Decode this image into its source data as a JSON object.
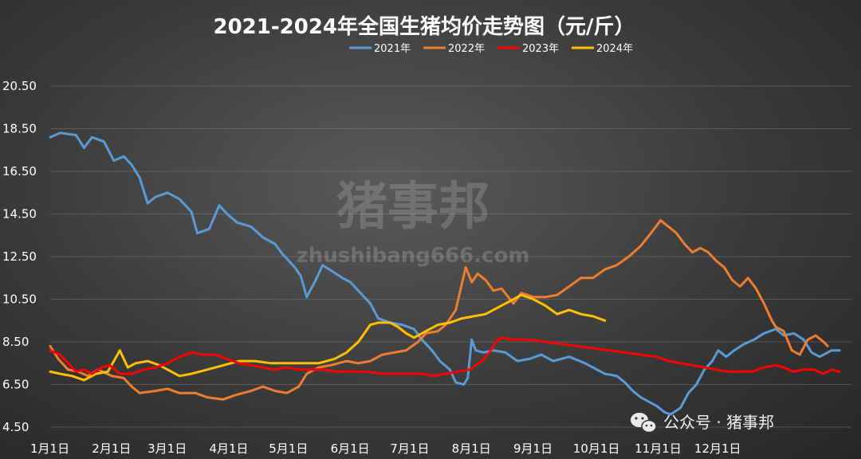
{
  "watermark": {
    "main": "猪事邦",
    "site": "zhushibang666.com"
  },
  "account_label": "公众号 · 猪事邦",
  "icons": {
    "account": "wechat-icon"
  },
  "chart_data": {
    "type": "line",
    "title": "2021-2024年全国生猪均价走势图（元/斤）",
    "xlabel": "",
    "ylabel": "",
    "legend_position": "top",
    "grid": true,
    "y_ticks": [
      "4.50",
      "6.50",
      "8.50",
      "10.50",
      "12.50",
      "14.50",
      "16.50",
      "18.50",
      "20.50"
    ],
    "ylim": [
      4.5,
      20.5
    ],
    "x_ticks": [
      {
        "label": "1月1日",
        "day": 1
      },
      {
        "label": "2月1日",
        "day": 32
      },
      {
        "label": "3月1日",
        "day": 60
      },
      {
        "label": "4月1日",
        "day": 91
      },
      {
        "label": "5月1日",
        "day": 121
      },
      {
        "label": "6月1日",
        "day": 152
      },
      {
        "label": "7月1日",
        "day": 182
      },
      {
        "label": "8月1日",
        "day": 213
      },
      {
        "label": "9月1日",
        "day": 244
      },
      {
        "label": "10月1日",
        "day": 274
      },
      {
        "label": "11月1日",
        "day": 305
      },
      {
        "label": "12月1日",
        "day": 335
      }
    ],
    "xlim": [
      1,
      366
    ],
    "series": [
      {
        "name": "2021年",
        "color": "#5b9bd5",
        "points": [
          [
            1,
            18.1
          ],
          [
            6,
            18.3
          ],
          [
            14,
            18.2
          ],
          [
            18,
            17.6
          ],
          [
            22,
            18.1
          ],
          [
            28,
            17.9
          ],
          [
            33,
            17.0
          ],
          [
            38,
            17.2
          ],
          [
            42,
            16.8
          ],
          [
            46,
            16.2
          ],
          [
            50,
            15.0
          ],
          [
            54,
            15.3
          ],
          [
            60,
            15.5
          ],
          [
            66,
            15.2
          ],
          [
            72,
            14.6
          ],
          [
            75,
            13.6
          ],
          [
            81,
            13.8
          ],
          [
            86,
            14.9
          ],
          [
            90,
            14.5
          ],
          [
            95,
            14.1
          ],
          [
            102,
            13.9
          ],
          [
            108,
            13.4
          ],
          [
            114,
            13.1
          ],
          [
            118,
            12.6
          ],
          [
            124,
            12.0
          ],
          [
            127,
            11.6
          ],
          [
            130,
            10.6
          ],
          [
            134,
            11.3
          ],
          [
            138,
            12.1
          ],
          [
            143,
            11.8
          ],
          [
            148,
            11.5
          ],
          [
            152,
            11.3
          ],
          [
            156,
            10.9
          ],
          [
            162,
            10.3
          ],
          [
            166,
            9.6
          ],
          [
            172,
            9.4
          ],
          [
            178,
            9.3
          ],
          [
            184,
            9.1
          ],
          [
            188,
            8.6
          ],
          [
            193,
            8.1
          ],
          [
            197,
            7.6
          ],
          [
            202,
            7.2
          ],
          [
            205,
            6.6
          ],
          [
            209,
            6.5
          ],
          [
            211,
            6.8
          ],
          [
            213,
            8.6
          ],
          [
            215,
            8.1
          ],
          [
            219,
            8.0
          ],
          [
            224,
            8.1
          ],
          [
            230,
            8.0
          ],
          [
            236,
            7.6
          ],
          [
            242,
            7.7
          ],
          [
            248,
            7.9
          ],
          [
            254,
            7.6
          ],
          [
            262,
            7.8
          ],
          [
            270,
            7.5
          ],
          [
            276,
            7.2
          ],
          [
            280,
            7.0
          ],
          [
            286,
            6.9
          ],
          [
            290,
            6.6
          ],
          [
            294,
            6.2
          ],
          [
            298,
            5.9
          ],
          [
            302,
            5.7
          ],
          [
            306,
            5.5
          ],
          [
            310,
            5.2
          ],
          [
            313,
            5.1
          ],
          [
            318,
            5.4
          ],
          [
            322,
            6.1
          ],
          [
            326,
            6.5
          ],
          [
            330,
            7.2
          ],
          [
            334,
            7.6
          ],
          [
            337,
            8.1
          ],
          [
            341,
            7.8
          ],
          [
            345,
            8.1
          ],
          [
            350,
            8.4
          ],
          [
            355,
            8.6
          ],
          [
            360,
            8.9
          ],
          [
            366,
            9.1
          ]
        ],
        "points_tail": [
          [
            370,
            8.8
          ],
          [
            375,
            8.9
          ],
          [
            380,
            8.6
          ],
          [
            384,
            8.0
          ],
          [
            388,
            7.8
          ],
          [
            390,
            7.9
          ],
          [
            394,
            8.1
          ],
          [
            398,
            8.1
          ]
        ]
      },
      {
        "name": "2022年",
        "color": "#ed7d31",
        "points": [
          [
            1,
            8.3
          ],
          [
            5,
            7.7
          ],
          [
            10,
            7.2
          ],
          [
            15,
            7.1
          ],
          [
            20,
            6.9
          ],
          [
            25,
            7.2
          ],
          [
            32,
            6.9
          ],
          [
            38,
            6.8
          ],
          [
            42,
            6.4
          ],
          [
            46,
            6.1
          ],
          [
            54,
            6.2
          ],
          [
            60,
            6.3
          ],
          [
            66,
            6.1
          ],
          [
            74,
            6.1
          ],
          [
            80,
            5.9
          ],
          [
            88,
            5.8
          ],
          [
            94,
            6.0
          ],
          [
            102,
            6.2
          ],
          [
            108,
            6.4
          ],
          [
            114,
            6.2
          ],
          [
            120,
            6.1
          ],
          [
            126,
            6.4
          ],
          [
            130,
            7.0
          ],
          [
            136,
            7.3
          ],
          [
            142,
            7.4
          ],
          [
            150,
            7.6
          ],
          [
            156,
            7.5
          ],
          [
            162,
            7.6
          ],
          [
            168,
            7.9
          ],
          [
            174,
            8.0
          ],
          [
            180,
            8.1
          ],
          [
            186,
            8.5
          ],
          [
            190,
            8.9
          ],
          [
            196,
            9.0
          ],
          [
            200,
            9.3
          ],
          [
            205,
            10.0
          ],
          [
            208,
            11.2
          ],
          [
            210,
            12.0
          ],
          [
            213,
            11.3
          ],
          [
            216,
            11.7
          ],
          [
            220,
            11.4
          ],
          [
            224,
            10.9
          ],
          [
            228,
            11.0
          ],
          [
            234,
            10.3
          ],
          [
            238,
            10.8
          ],
          [
            244,
            10.6
          ],
          [
            250,
            10.6
          ],
          [
            256,
            10.7
          ],
          [
            262,
            11.1
          ],
          [
            268,
            11.5
          ],
          [
            274,
            11.5
          ],
          [
            280,
            11.9
          ],
          [
            286,
            12.1
          ],
          [
            292,
            12.5
          ],
          [
            298,
            13.0
          ],
          [
            304,
            13.7
          ],
          [
            308,
            14.2
          ],
          [
            312,
            13.9
          ],
          [
            316,
            13.6
          ],
          [
            320,
            13.1
          ],
          [
            324,
            12.7
          ],
          [
            328,
            12.9
          ],
          [
            332,
            12.7
          ],
          [
            336,
            12.3
          ],
          [
            340,
            12.0
          ],
          [
            344,
            11.4
          ],
          [
            348,
            11.1
          ],
          [
            352,
            11.5
          ],
          [
            356,
            11.0
          ],
          [
            360,
            10.3
          ],
          [
            364,
            9.5
          ],
          [
            366,
            9.2
          ]
        ],
        "points_tail": [
          [
            370,
            9.0
          ],
          [
            374,
            8.1
          ],
          [
            378,
            7.9
          ],
          [
            382,
            8.6
          ],
          [
            386,
            8.8
          ],
          [
            390,
            8.5
          ],
          [
            392,
            8.3
          ]
        ]
      },
      {
        "name": "2023年",
        "color": "#ff0000",
        "points": [
          [
            1,
            8.1
          ],
          [
            6,
            7.9
          ],
          [
            10,
            7.5
          ],
          [
            14,
            7.1
          ],
          [
            18,
            7.2
          ],
          [
            22,
            7.0
          ],
          [
            27,
            7.3
          ],
          [
            31,
            7.4
          ],
          [
            36,
            7.0
          ],
          [
            42,
            7.0
          ],
          [
            48,
            7.2
          ],
          [
            54,
            7.3
          ],
          [
            60,
            7.5
          ],
          [
            66,
            7.8
          ],
          [
            72,
            8.0
          ],
          [
            78,
            7.9
          ],
          [
            84,
            7.9
          ],
          [
            90,
            7.7
          ],
          [
            96,
            7.5
          ],
          [
            102,
            7.4
          ],
          [
            108,
            7.3
          ],
          [
            114,
            7.2
          ],
          [
            120,
            7.3
          ],
          [
            126,
            7.2
          ],
          [
            132,
            7.2
          ],
          [
            138,
            7.2
          ],
          [
            146,
            7.1
          ],
          [
            152,
            7.1
          ],
          [
            160,
            7.1
          ],
          [
            168,
            7.0
          ],
          [
            176,
            7.0
          ],
          [
            182,
            7.0
          ],
          [
            188,
            7.0
          ],
          [
            194,
            6.9
          ],
          [
            200,
            7.0
          ],
          [
            206,
            7.1
          ],
          [
            212,
            7.2
          ],
          [
            218,
            7.6
          ],
          [
            222,
            8.0
          ],
          [
            225,
            8.5
          ],
          [
            228,
            8.7
          ],
          [
            234,
            8.6
          ],
          [
            242,
            8.6
          ],
          [
            250,
            8.5
          ],
          [
            258,
            8.4
          ],
          [
            266,
            8.3
          ],
          [
            274,
            8.2
          ],
          [
            282,
            8.1
          ],
          [
            290,
            8.0
          ],
          [
            298,
            7.9
          ],
          [
            306,
            7.8
          ],
          [
            312,
            7.6
          ],
          [
            318,
            7.5
          ],
          [
            324,
            7.4
          ],
          [
            330,
            7.3
          ],
          [
            336,
            7.2
          ],
          [
            342,
            7.1
          ],
          [
            348,
            7.1
          ],
          [
            354,
            7.1
          ],
          [
            360,
            7.3
          ],
          [
            366,
            7.4
          ]
        ],
        "points_tail": [
          [
            370,
            7.3
          ],
          [
            375,
            7.1
          ],
          [
            380,
            7.2
          ],
          [
            385,
            7.2
          ],
          [
            390,
            7.0
          ],
          [
            394,
            7.2
          ],
          [
            398,
            7.1
          ]
        ]
      },
      {
        "name": "2024年",
        "color": "#ffc000",
        "points": [
          [
            1,
            7.1
          ],
          [
            6,
            7.0
          ],
          [
            12,
            6.9
          ],
          [
            18,
            6.7
          ],
          [
            24,
            7.0
          ],
          [
            30,
            7.1
          ],
          [
            33,
            7.6
          ],
          [
            36,
            8.1
          ],
          [
            40,
            7.3
          ],
          [
            44,
            7.5
          ],
          [
            50,
            7.6
          ],
          [
            56,
            7.4
          ],
          [
            60,
            7.2
          ],
          [
            66,
            6.9
          ],
          [
            72,
            7.0
          ],
          [
            80,
            7.2
          ],
          [
            88,
            7.4
          ],
          [
            96,
            7.6
          ],
          [
            104,
            7.6
          ],
          [
            112,
            7.5
          ],
          [
            120,
            7.5
          ],
          [
            128,
            7.5
          ],
          [
            136,
            7.5
          ],
          [
            144,
            7.7
          ],
          [
            150,
            8.0
          ],
          [
            156,
            8.5
          ],
          [
            162,
            9.3
          ],
          [
            166,
            9.4
          ],
          [
            172,
            9.4
          ],
          [
            176,
            9.2
          ],
          [
            180,
            8.9
          ],
          [
            184,
            8.7
          ],
          [
            190,
            9.0
          ],
          [
            196,
            9.3
          ],
          [
            202,
            9.4
          ],
          [
            208,
            9.6
          ],
          [
            214,
            9.7
          ],
          [
            220,
            9.8
          ],
          [
            226,
            10.1
          ],
          [
            232,
            10.4
          ],
          [
            238,
            10.7
          ],
          [
            244,
            10.5
          ],
          [
            250,
            10.2
          ],
          [
            256,
            9.8
          ],
          [
            262,
            10.0
          ],
          [
            268,
            9.8
          ],
          [
            274,
            9.7
          ],
          [
            280,
            9.5
          ]
        ]
      }
    ]
  }
}
